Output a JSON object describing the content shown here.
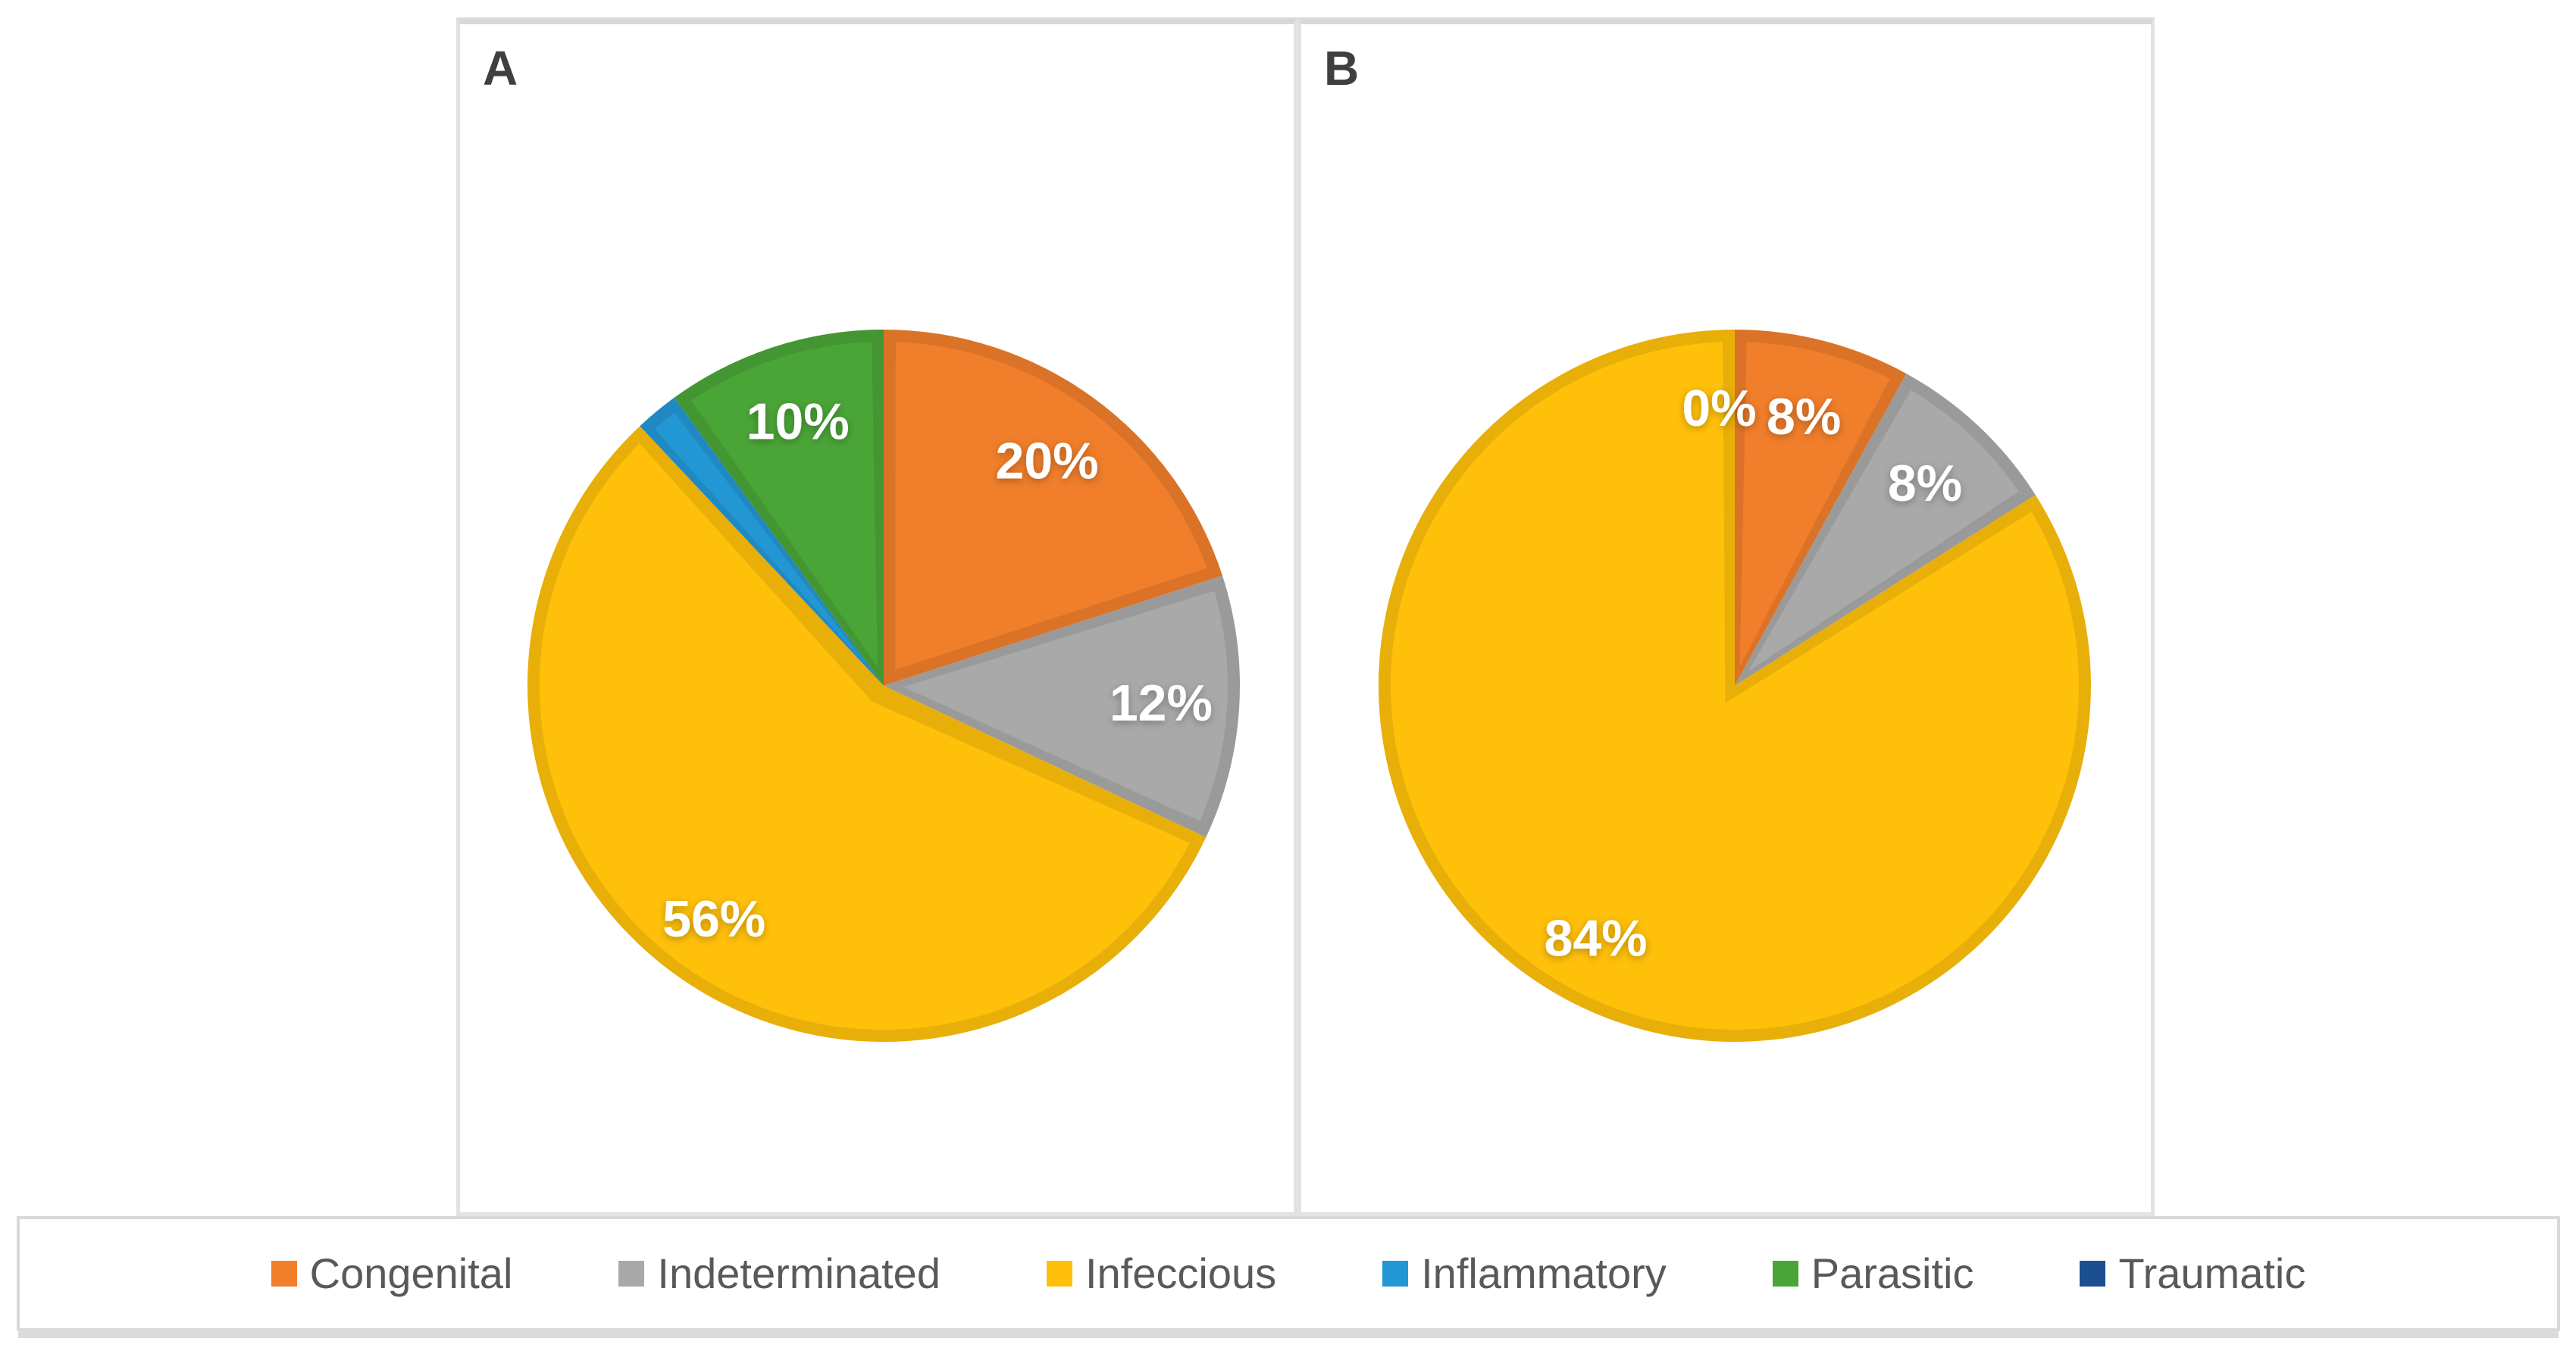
{
  "page": {
    "background": "#ffffff"
  },
  "panels": [
    {
      "label": "A"
    },
    {
      "label": "B"
    }
  ],
  "legend": {
    "items": [
      {
        "label": "Congenital",
        "color": "#F07E2B"
      },
      {
        "label": "Indeterminated",
        "color": "#A9A9A9"
      },
      {
        "label": "Infeccious",
        "color": "#FFC00A"
      },
      {
        "label": "Inflammatory",
        "color": "#2397D4"
      },
      {
        "label": "Parasitic",
        "color": "#4AA537"
      },
      {
        "label": "Traumatic",
        "color": "#1C4F91"
      }
    ],
    "text_color": "#595959"
  },
  "chart_data": [
    {
      "type": "pie",
      "panel": "A",
      "categories": [
        "Congenital",
        "Indeterminated",
        "Infeccious",
        "Inflammatory",
        "Parasitic",
        "Traumatic"
      ],
      "values": [
        20,
        12,
        56,
        2,
        10,
        0
      ],
      "slice_labels": [
        "20%",
        "12%",
        "56%",
        "",
        "10%",
        ""
      ],
      "start_angle_deg": 0,
      "direction": "clockwise",
      "label_color": "#ffffff",
      "legend_position": "bottom-shared"
    },
    {
      "type": "pie",
      "panel": "B",
      "categories": [
        "Congenital",
        "Indeterminated",
        "Infeccious",
        "Inflammatory",
        "Parasitic",
        "Traumatic"
      ],
      "values": [
        8,
        8,
        84,
        0,
        0,
        0
      ],
      "slice_labels": [
        "8%",
        "8%",
        "84%",
        "0%",
        "",
        ""
      ],
      "start_angle_deg": 0,
      "direction": "clockwise",
      "label_color": "#ffffff",
      "legend_position": "bottom-shared"
    }
  ]
}
